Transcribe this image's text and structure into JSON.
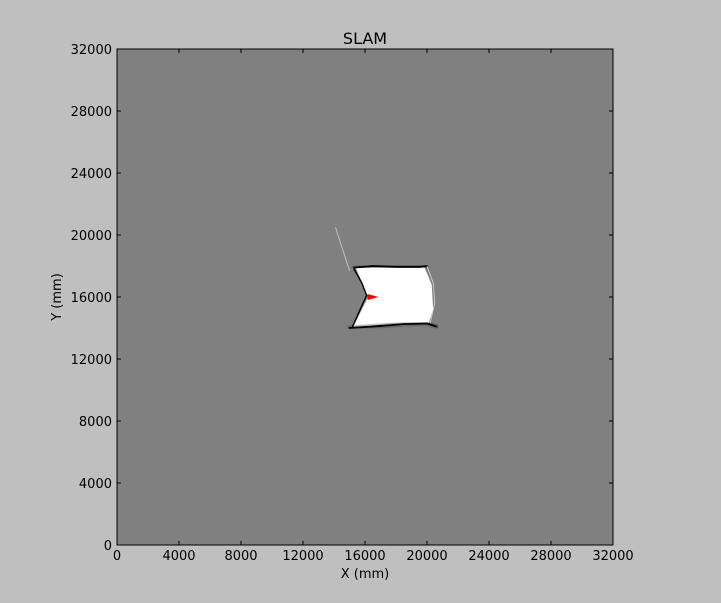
{
  "chart_data": {
    "type": "heatmap",
    "title": "SLAM",
    "xlabel": "X (mm)",
    "ylabel": "Y (mm)",
    "xlim": [
      0,
      32000
    ],
    "ylim": [
      0,
      32000
    ],
    "x_ticks": [
      0,
      4000,
      8000,
      12000,
      16000,
      20000,
      24000,
      28000,
      32000
    ],
    "y_ticks": [
      0,
      4000,
      8000,
      12000,
      16000,
      20000,
      24000,
      28000,
      32000
    ],
    "x_tick_labels": [
      "0",
      "4000",
      "8000",
      "12000",
      "16000",
      "20000",
      "24000",
      "28000",
      "32000"
    ],
    "y_tick_labels": [
      "0",
      "4000",
      "8000",
      "12000",
      "16000",
      "20000",
      "24000",
      "28000",
      "32000"
    ],
    "grid": false,
    "colors": {
      "unknown": "#808080",
      "free": "#ffffff",
      "occupied": "#000000",
      "robot": "#ff0000",
      "figure_background": "#bfbfbf"
    },
    "map": {
      "free_region": [
        [
          15400,
          17900
        ],
        [
          19800,
          18000
        ],
        [
          20300,
          16800
        ],
        [
          20400,
          15200
        ],
        [
          20100,
          14300
        ],
        [
          19000,
          14200
        ],
        [
          15200,
          14000
        ],
        [
          16200,
          16000
        ]
      ],
      "wall_top": [
        [
          15300,
          17900
        ],
        [
          16500,
          18000
        ],
        [
          18000,
          17950
        ],
        [
          19500,
          17950
        ],
        [
          20000,
          18000
        ]
      ],
      "wall_bottom": [
        [
          15000,
          14000
        ],
        [
          16500,
          14100
        ],
        [
          18500,
          14250
        ],
        [
          20000,
          14300
        ],
        [
          20600,
          14100
        ]
      ],
      "wall_left_upper": [
        [
          15300,
          17800
        ],
        [
          15800,
          16900
        ],
        [
          16100,
          16100
        ]
      ],
      "wall_left_lower": [
        [
          16100,
          16100
        ],
        [
          15600,
          15000
        ],
        [
          15200,
          14100
        ]
      ],
      "stray_ray": [
        [
          14100,
          20500
        ],
        [
          15000,
          17700
        ]
      ],
      "right_arc": [
        [
          20000,
          18000
        ],
        [
          20400,
          16900
        ],
        [
          20500,
          15600
        ],
        [
          20200,
          14300
        ]
      ]
    },
    "robot": {
      "x": 16300,
      "y": 16000,
      "heading_deg": 0
    }
  }
}
